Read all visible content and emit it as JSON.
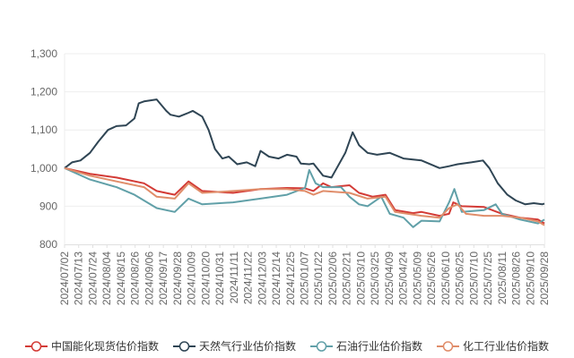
{
  "chart_data": {
    "type": "line",
    "title": "",
    "xlabel": "",
    "ylabel": "",
    "ylim": [
      800,
      1300
    ],
    "yticks": [
      "800",
      "900",
      "1,000",
      "1,100",
      "1,200",
      "1,300"
    ],
    "ytick_values": [
      800,
      900,
      1000,
      1100,
      1200,
      1300
    ],
    "x_unit": "days since 2024/07/02",
    "xlim": [
      0,
      453
    ],
    "xtick_labels": [
      "2024/07/02",
      "2024/07/13",
      "2024/07/24",
      "2024/08/04",
      "2024/08/15",
      "2024/08/26",
      "2024/09/06",
      "2024/09/17",
      "2024/09/28",
      "2024/10/09",
      "2024/10/20",
      "2024/10/31",
      "2024/11/11",
      "2024/11/22",
      "2024/12/03",
      "2024/12/14",
      "2024/12/25",
      "2025/01/07",
      "2025/01/22",
      "2025/02/06",
      "2025/02/21",
      "2025/03/10",
      "2025/03/25",
      "2025/04/09",
      "2025/04/24",
      "2025/05/09",
      "2025/05/26",
      "2025/06/10",
      "2025/06/25",
      "2025/07/10",
      "2025/07/25",
      "2025/08/11",
      "2025/08/26",
      "2025/09/10",
      "2025/09/28"
    ],
    "grid": true,
    "legend_position": "bottom",
    "series": [
      {
        "name": "中国能化现货估价指数",
        "color": "#d33b36",
        "points": [
          [
            0,
            1000
          ],
          [
            24,
            985
          ],
          [
            49,
            975
          ],
          [
            75,
            960
          ],
          [
            87,
            940
          ],
          [
            104,
            930
          ],
          [
            117,
            965
          ],
          [
            130,
            940
          ],
          [
            159,
            935
          ],
          [
            185,
            945
          ],
          [
            210,
            948
          ],
          [
            227,
            947
          ],
          [
            235,
            940
          ],
          [
            244,
            960
          ],
          [
            252,
            950
          ],
          [
            269,
            955
          ],
          [
            278,
            935
          ],
          [
            291,
            925
          ],
          [
            303,
            930
          ],
          [
            312,
            890
          ],
          [
            329,
            882
          ],
          [
            337,
            885
          ],
          [
            354,
            875
          ],
          [
            363,
            880
          ],
          [
            367,
            910
          ],
          [
            375,
            900
          ],
          [
            396,
            898
          ],
          [
            413,
            880
          ],
          [
            430,
            870
          ],
          [
            447,
            865
          ],
          [
            453,
            855
          ]
        ]
      },
      {
        "name": "天然气行业估价指数",
        "color": "#2f4554",
        "points": [
          [
            0,
            1000
          ],
          [
            7,
            1015
          ],
          [
            15,
            1020
          ],
          [
            24,
            1040
          ],
          [
            32,
            1070
          ],
          [
            41,
            1100
          ],
          [
            49,
            1110
          ],
          [
            58,
            1112
          ],
          [
            66,
            1130
          ],
          [
            70,
            1170
          ],
          [
            75,
            1175
          ],
          [
            87,
            1180
          ],
          [
            96,
            1150
          ],
          [
            100,
            1140
          ],
          [
            108,
            1135
          ],
          [
            117,
            1145
          ],
          [
            121,
            1150
          ],
          [
            130,
            1135
          ],
          [
            136,
            1100
          ],
          [
            142,
            1050
          ],
          [
            149,
            1025
          ],
          [
            155,
            1030
          ],
          [
            163,
            1010
          ],
          [
            172,
            1015
          ],
          [
            180,
            1005
          ],
          [
            185,
            1045
          ],
          [
            193,
            1030
          ],
          [
            202,
            1025
          ],
          [
            210,
            1035
          ],
          [
            219,
            1030
          ],
          [
            223,
            1012
          ],
          [
            231,
            1010
          ],
          [
            235,
            1012
          ],
          [
            244,
            980
          ],
          [
            252,
            975
          ],
          [
            257,
            1000
          ],
          [
            265,
            1040
          ],
          [
            272,
            1094
          ],
          [
            278,
            1060
          ],
          [
            286,
            1040
          ],
          [
            295,
            1035
          ],
          [
            307,
            1040
          ],
          [
            320,
            1025
          ],
          [
            337,
            1020
          ],
          [
            354,
            1000
          ],
          [
            363,
            1005
          ],
          [
            371,
            1010
          ],
          [
            384,
            1015
          ],
          [
            395,
            1020
          ],
          [
            401,
            1000
          ],
          [
            409,
            960
          ],
          [
            418,
            930
          ],
          [
            426,
            915
          ],
          [
            435,
            905
          ],
          [
            443,
            908
          ],
          [
            451,
            905
          ],
          [
            453,
            907
          ]
        ]
      },
      {
        "name": "石油行业估价指数",
        "color": "#61a0a8",
        "points": [
          [
            0,
            1000
          ],
          [
            24,
            970
          ],
          [
            49,
            950
          ],
          [
            66,
            930
          ],
          [
            87,
            895
          ],
          [
            104,
            885
          ],
          [
            117,
            920
          ],
          [
            130,
            905
          ],
          [
            159,
            910
          ],
          [
            185,
            920
          ],
          [
            210,
            930
          ],
          [
            227,
            948
          ],
          [
            231,
            995
          ],
          [
            237,
            960
          ],
          [
            244,
            950
          ],
          [
            261,
            950
          ],
          [
            269,
            925
          ],
          [
            278,
            905
          ],
          [
            286,
            900
          ],
          [
            299,
            925
          ],
          [
            307,
            880
          ],
          [
            320,
            870
          ],
          [
            329,
            845
          ],
          [
            337,
            862
          ],
          [
            354,
            860
          ],
          [
            363,
            910
          ],
          [
            368,
            945
          ],
          [
            375,
            885
          ],
          [
            396,
            890
          ],
          [
            407,
            905
          ],
          [
            413,
            880
          ],
          [
            430,
            865
          ],
          [
            447,
            855
          ],
          [
            453,
            865
          ]
        ]
      },
      {
        "name": "化工行业估价指数",
        "color": "#e08d6a",
        "points": [
          [
            0,
            1000
          ],
          [
            24,
            980
          ],
          [
            49,
            965
          ],
          [
            75,
            950
          ],
          [
            87,
            925
          ],
          [
            104,
            920
          ],
          [
            117,
            960
          ],
          [
            130,
            935
          ],
          [
            159,
            940
          ],
          [
            185,
            945
          ],
          [
            210,
            945
          ],
          [
            227,
            940
          ],
          [
            235,
            930
          ],
          [
            244,
            940
          ],
          [
            269,
            935
          ],
          [
            286,
            920
          ],
          [
            303,
            925
          ],
          [
            312,
            885
          ],
          [
            329,
            878
          ],
          [
            337,
            875
          ],
          [
            354,
            870
          ],
          [
            363,
            895
          ],
          [
            371,
            905
          ],
          [
            379,
            880
          ],
          [
            396,
            875
          ],
          [
            413,
            875
          ],
          [
            430,
            870
          ],
          [
            447,
            860
          ],
          [
            453,
            850
          ]
        ]
      }
    ]
  }
}
